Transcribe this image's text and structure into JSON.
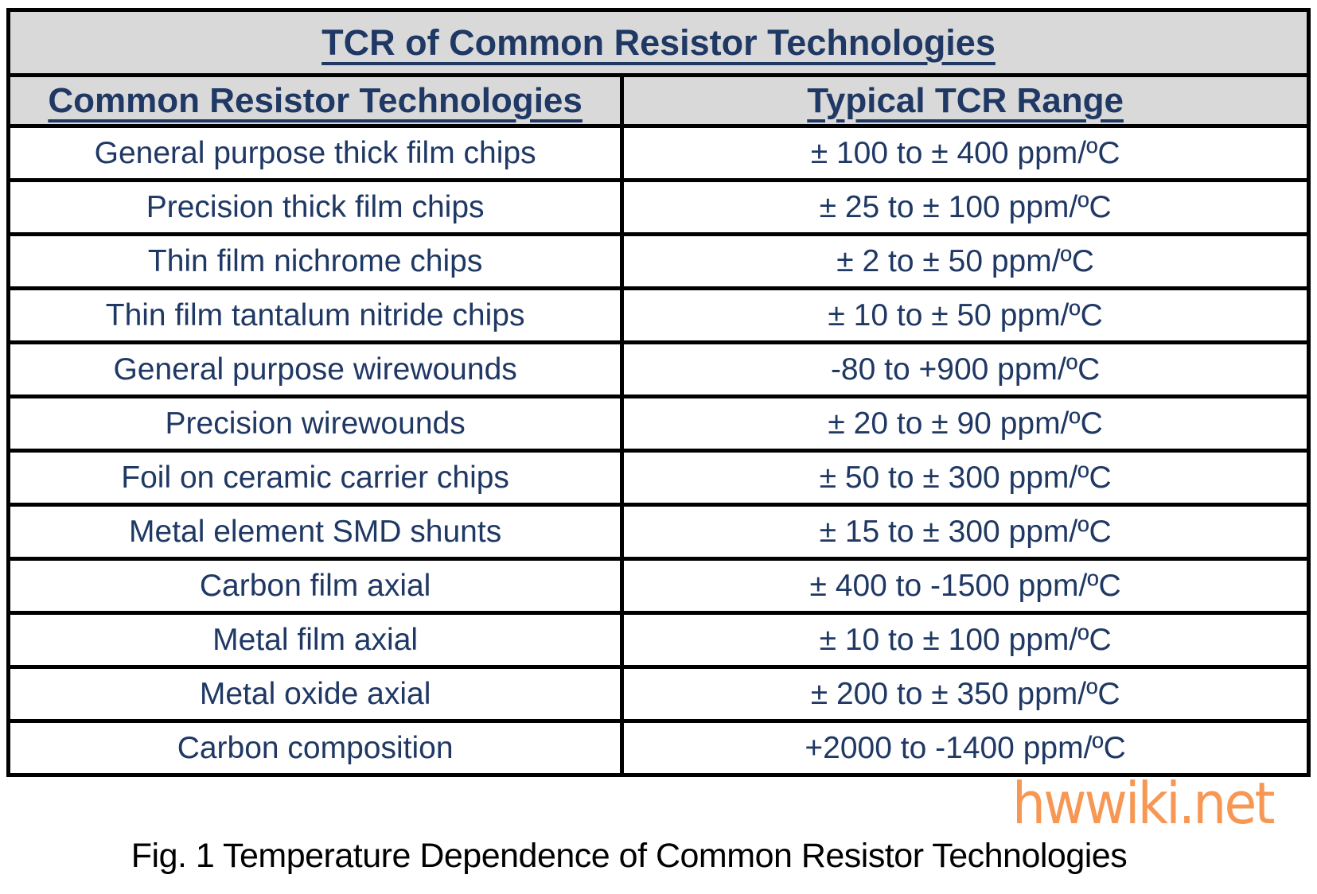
{
  "table": {
    "title": "TCR of Common Resistor Technologies",
    "columns": [
      "Common Resistor Technologies",
      "Typical TCR Range"
    ],
    "rows": [
      {
        "technology": "General purpose thick film chips",
        "tcr_range": "± 100 to ± 400 ppm/ºC"
      },
      {
        "technology": "Precision thick film chips",
        "tcr_range": "± 25 to ± 100 ppm/ºC"
      },
      {
        "technology": "Thin film nichrome chips",
        "tcr_range": "± 2 to ± 50 ppm/ºC"
      },
      {
        "technology": "Thin film tantalum nitride chips",
        "tcr_range": "± 10 to ± 50 ppm/ºC"
      },
      {
        "technology": "General purpose wirewounds",
        "tcr_range": "-80 to +900 ppm/ºC"
      },
      {
        "technology": "Precision wirewounds",
        "tcr_range": "± 20 to ± 90 ppm/ºC"
      },
      {
        "technology": "Foil on ceramic carrier chips",
        "tcr_range": "± 50 to ± 300 ppm/ºC"
      },
      {
        "technology": "Metal element SMD shunts",
        "tcr_range": "± 15 to ± 300 ppm/ºC"
      },
      {
        "technology": "Carbon film axial",
        "tcr_range": "± 400 to -1500 ppm/ºC"
      },
      {
        "technology": "Metal film axial",
        "tcr_range": "± 10 to ± 100 ppm/ºC"
      },
      {
        "technology": "Metal oxide axial",
        "tcr_range": "± 200 to ± 350 ppm/ºC"
      },
      {
        "technology": "Carbon composition",
        "tcr_range": "+2000 to -1400 ppm/ºC"
      }
    ]
  },
  "caption": "Fig. 1 Temperature Dependence of Common Resistor Technologies",
  "watermark": {
    "text": "hwwiki.net"
  },
  "colors": {
    "text_navy": "#1F3864",
    "header_bg": "#D9D9D9",
    "border_black": "#000000",
    "watermark_orange": "#F6893D",
    "caption_black": "#000000",
    "page_bg": "#FFFFFF"
  }
}
